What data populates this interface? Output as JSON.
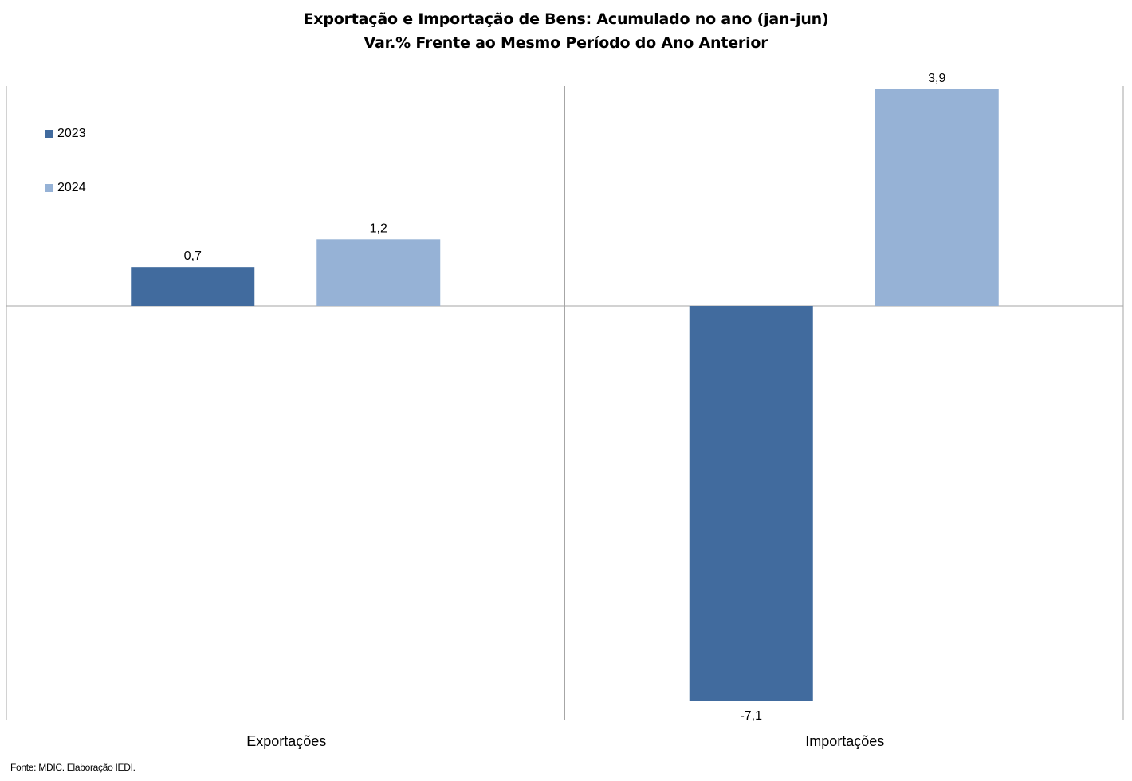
{
  "colors": {
    "series_2023": "#416B9E",
    "series_2024": "#96B2D6",
    "axis": "#A6A6A6"
  },
  "chart_data": {
    "type": "bar",
    "title": "Exportação e Importação de Bens: Acumulado no ano (jan-jun)",
    "subtitle": "Var.%  Frente ao Mesmo Período do Ano Anterior",
    "categories": [
      "Exportações",
      "Importações"
    ],
    "series": [
      {
        "name": "2023",
        "values": [
          0.7,
          -7.1
        ],
        "labels": [
          "0,7",
          "-7,1"
        ]
      },
      {
        "name": "2024",
        "values": [
          1.2,
          3.9
        ],
        "labels": [
          "1,2",
          "3,9"
        ]
      }
    ],
    "xlabel": "",
    "ylabel": "",
    "ylim": [
      -7.5,
      4.0
    ],
    "grid": false,
    "legend_position": "top-left",
    "source": "Fonte: MDIC. Elaboração IEDI."
  }
}
